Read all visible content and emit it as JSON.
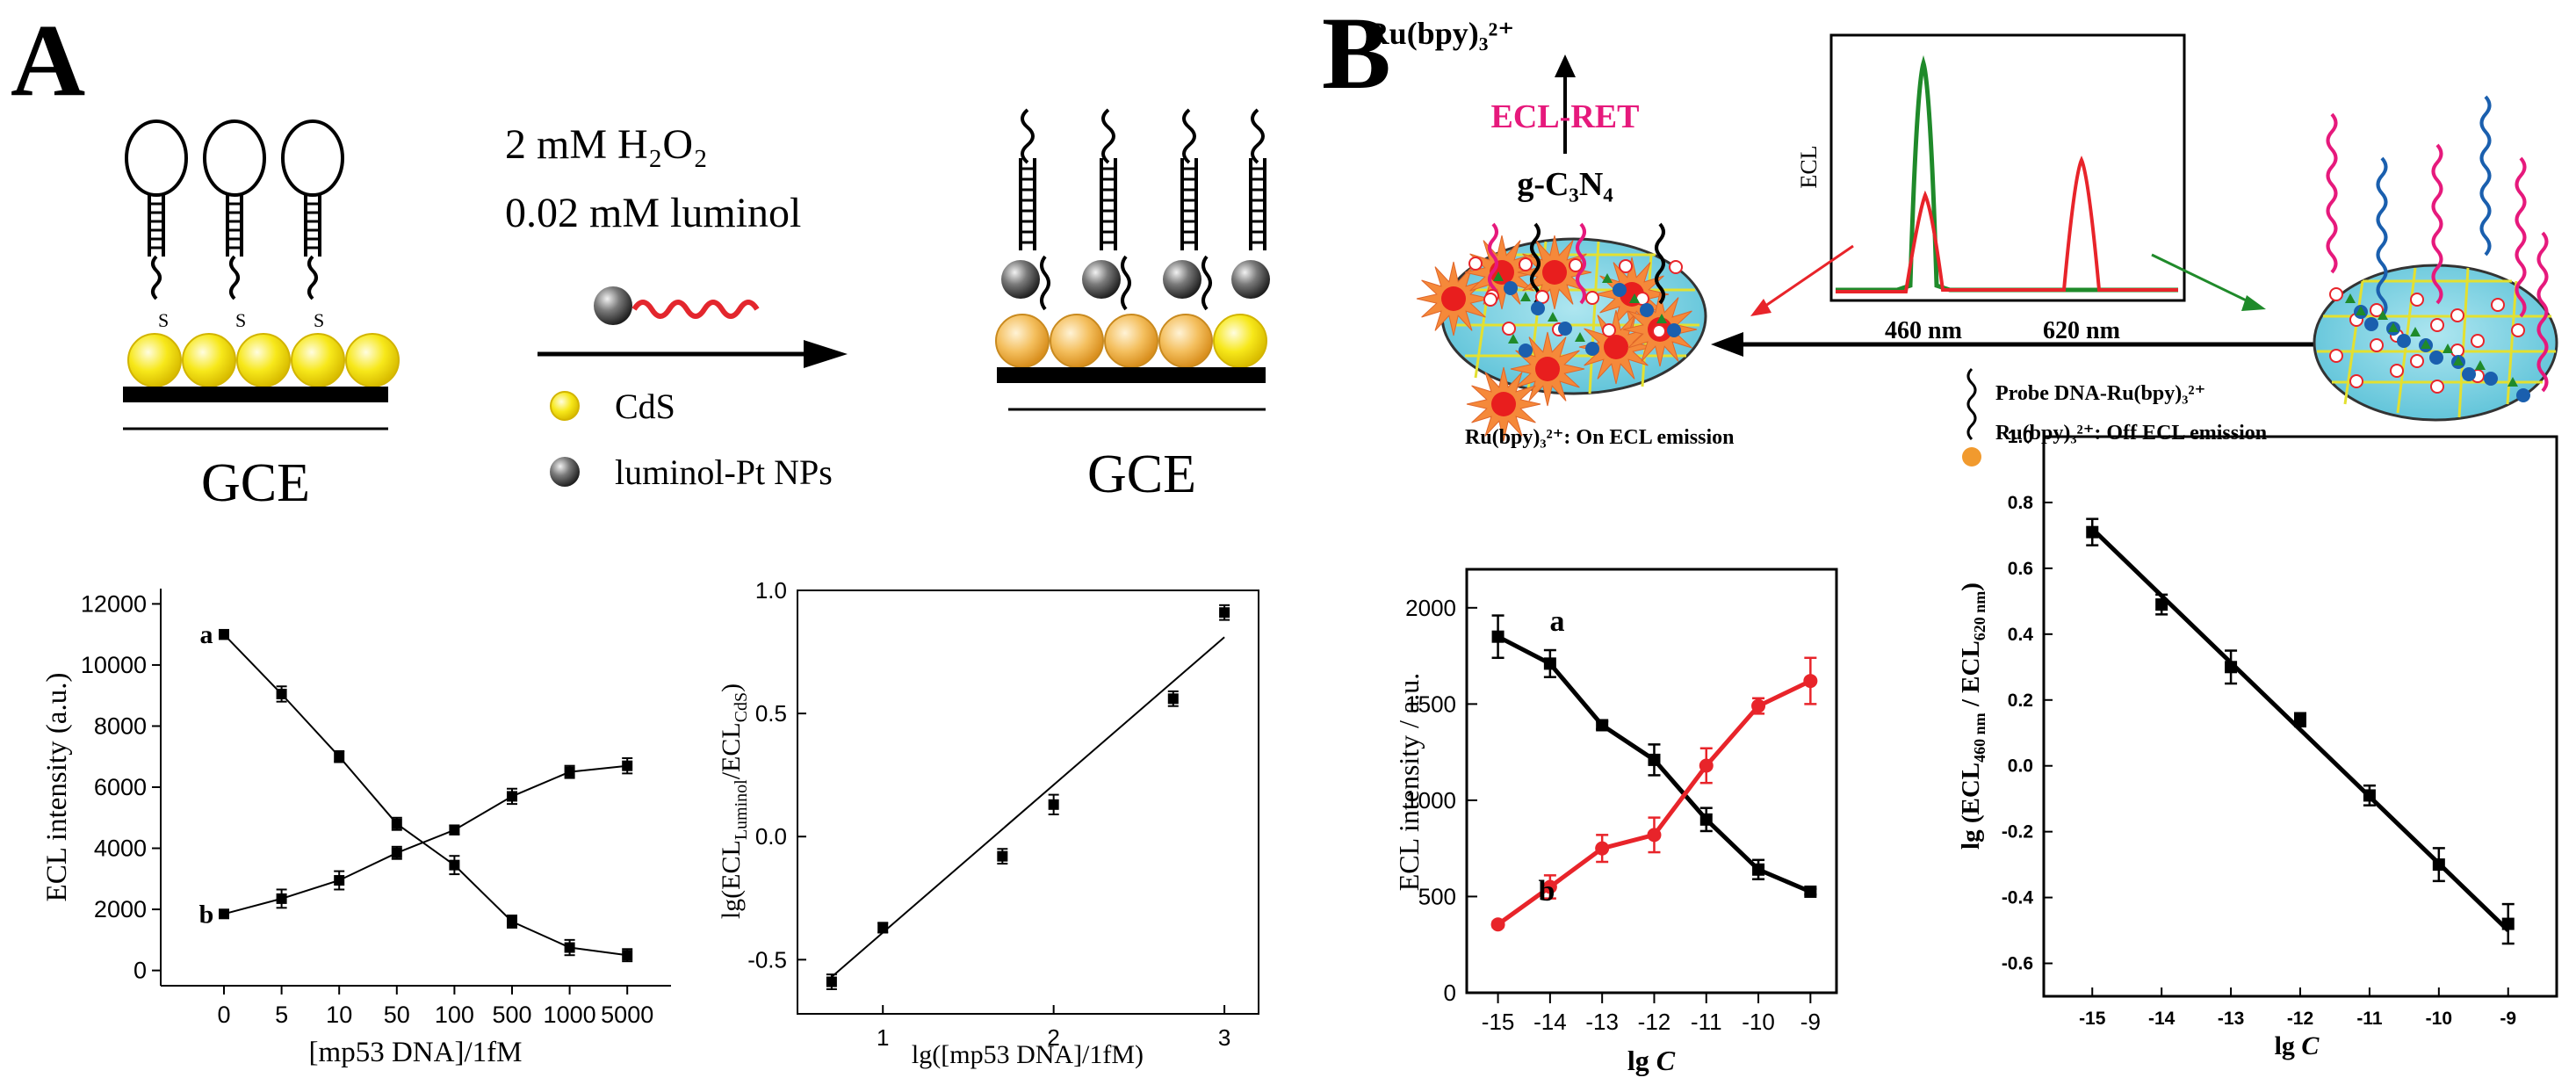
{
  "panels": {
    "a": {
      "letter": "A",
      "reagent_line1": "2 mM H₂O₂",
      "reagent_line2": "0.02 mM luminol",
      "legend_cds": "CdS",
      "legend_pt": "luminol-Pt NPs",
      "electrode_left": "GCE",
      "electrode_right": "GCE",
      "thiol_label": "S"
    },
    "b": {
      "letter": "B",
      "ru_label": "Ru(bpy)₃²⁺",
      "ecl_ret": "ECL-RET",
      "g_c3n4": "g-C₃N₄",
      "inset_ylabel": "ECL",
      "inset_x1": "460 nm",
      "inset_x2": "620 nm",
      "on_label": "Ru(bpy)₃²⁺:  On ECL emission",
      "probe_label": "Probe DNA-Ru(bpy)₃²⁺",
      "off_label": "Ru(bpy)₃²⁺:  Off ECL emission"
    }
  },
  "colors": {
    "cds": "#f5e400",
    "cds_edge": "#d9b800",
    "cds_orange": "#f3b64a",
    "pt": "#555555",
    "red_wave": "#e3262d",
    "ecl_ret": "#e6197c",
    "green": "#1f8a2a",
    "red": "#e8242a",
    "nanosheet": "#7fd3e5",
    "black": "#000000"
  },
  "chart_data": [
    {
      "id": "chart1",
      "type": "line",
      "categories": [
        "0",
        "5",
        "10",
        "50",
        "100",
        "500",
        "1000",
        "5000"
      ],
      "series": [
        {
          "name": "a",
          "values": [
            11000,
            9050,
            7000,
            4800,
            3450,
            1600,
            750,
            500
          ],
          "errors": [
            150,
            250,
            180,
            200,
            300,
            200,
            250,
            200
          ]
        },
        {
          "name": "b",
          "values": [
            1850,
            2350,
            2950,
            3850,
            4600,
            5700,
            6500,
            6700
          ],
          "errors": [
            120,
            300,
            300,
            200,
            150,
            250,
            200,
            250
          ]
        }
      ],
      "xlabel": "[mp53 DNA]/1fM",
      "ylabel": "ECL intensity (a.u.)",
      "ylim": [
        -500,
        12500
      ],
      "yticks": [
        0,
        2000,
        4000,
        6000,
        8000,
        10000,
        12000
      ],
      "series_labels": [
        "a",
        "b"
      ]
    },
    {
      "id": "chart2",
      "type": "scatter",
      "x": [
        0.7,
        1.0,
        1.7,
        2.0,
        2.7,
        3.0
      ],
      "y": [
        -0.59,
        -0.37,
        -0.08,
        0.13,
        0.56,
        0.91
      ],
      "errors": [
        0.03,
        0.02,
        0.03,
        0.04,
        0.03,
        0.03
      ],
      "fit": {
        "x": [
          0.7,
          3.0
        ],
        "y": [
          -0.57,
          0.81
        ]
      },
      "xlabel": "lg([mp53 DNA]/1fM)",
      "ylabel_main": "lg(ECL",
      "ylabel_sub1": "Luminol",
      "ylabel_mid": "/ECL",
      "ylabel_sub2": "CdS",
      "ylabel_end": ")",
      "xlim": [
        0.5,
        3.2
      ],
      "ylim": [
        -0.72,
        1.0
      ],
      "xticks": [
        1,
        2,
        3
      ],
      "yticks": [
        -0.5,
        0.0,
        0.5,
        1.0
      ],
      "ytick_labels": [
        "-0.5",
        "0.0",
        "0.5",
        "1.0"
      ]
    },
    {
      "id": "chart3",
      "type": "line",
      "x": [
        -15,
        -14,
        -13,
        -12,
        -11,
        -10,
        -9
      ],
      "series": [
        {
          "name": "a",
          "color": "#000000",
          "values": [
            1850,
            1710,
            1390,
            1210,
            900,
            640,
            525
          ],
          "errors": [
            110,
            70,
            20,
            80,
            60,
            50,
            15
          ]
        },
        {
          "name": "b",
          "color": "#e8242a",
          "values": [
            355,
            550,
            750,
            820,
            1180,
            1490,
            1620
          ],
          "errors": [
            15,
            60,
            70,
            90,
            90,
            40,
            120
          ]
        }
      ],
      "xlabel_main": "lg ",
      "xlabel_italic": "C",
      "ylabel": "ECL intensity / a.u.",
      "xlim": [
        -15.6,
        -8.5
      ],
      "ylim": [
        0,
        2200
      ],
      "xticks": [
        -15,
        -14,
        -13,
        -12,
        -11,
        -10,
        -9
      ],
      "yticks": [
        0,
        500,
        1000,
        1500,
        2000
      ],
      "series_labels": [
        "a",
        "b"
      ]
    },
    {
      "id": "chart4",
      "type": "scatter",
      "x": [
        -15,
        -14,
        -13,
        -12,
        -11,
        -10,
        -9
      ],
      "y": [
        0.71,
        0.49,
        0.3,
        0.14,
        -0.09,
        -0.3,
        -0.48
      ],
      "errors": [
        0.04,
        0.03,
        0.05,
        0.02,
        0.03,
        0.05,
        0.06
      ],
      "fit": {
        "x": [
          -15,
          -9
        ],
        "y": [
          0.72,
          -0.5
        ]
      },
      "xlabel_main": "lg ",
      "xlabel_italic": "C",
      "ylabel_main": "lg (ECL",
      "ylabel_sub1": "460 nm",
      "ylabel_mid": " / ECL",
      "ylabel_sub2": "620 nm",
      "ylabel_end": ")",
      "xlim": [
        -15.7,
        -8.3
      ],
      "ylim": [
        -0.7,
        1.0
      ],
      "xticks": [
        -15,
        -14,
        -13,
        -12,
        -11,
        -10,
        -9
      ],
      "yticks": [
        -0.6,
        -0.4,
        -0.2,
        0.0,
        0.2,
        0.4,
        0.6,
        0.8,
        1.0
      ],
      "ytick_labels": [
        "-0.6",
        "-0.4",
        "-0.2",
        "0.0",
        "0.2",
        "0.4",
        "0.6",
        "0.8",
        "1.0"
      ]
    }
  ]
}
